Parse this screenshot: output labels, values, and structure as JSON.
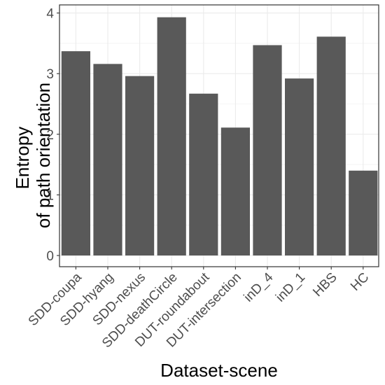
{
  "chart_data": {
    "type": "bar",
    "categories": [
      "SDD-coupa",
      "SDD-hyang",
      "SDD-nexus",
      "SDD-deathCircle",
      "DUT-roundabout",
      "DUT-intersection",
      "inD_4",
      "inD_1",
      "HBS",
      "HC"
    ],
    "values": [
      3.37,
      3.16,
      2.96,
      3.93,
      2.67,
      2.11,
      3.47,
      2.92,
      3.61,
      1.4
    ],
    "ylabel_lines": [
      "Entropy",
      "of path orientation"
    ],
    "xlabel": "Dataset-scene",
    "ylim": [
      0,
      4.1
    ],
    "yticks": [
      0,
      1,
      2,
      3,
      4
    ],
    "grid": true,
    "bar_color": "#595959",
    "grid_color": "#ebebeb",
    "axis_color": "#333333"
  }
}
